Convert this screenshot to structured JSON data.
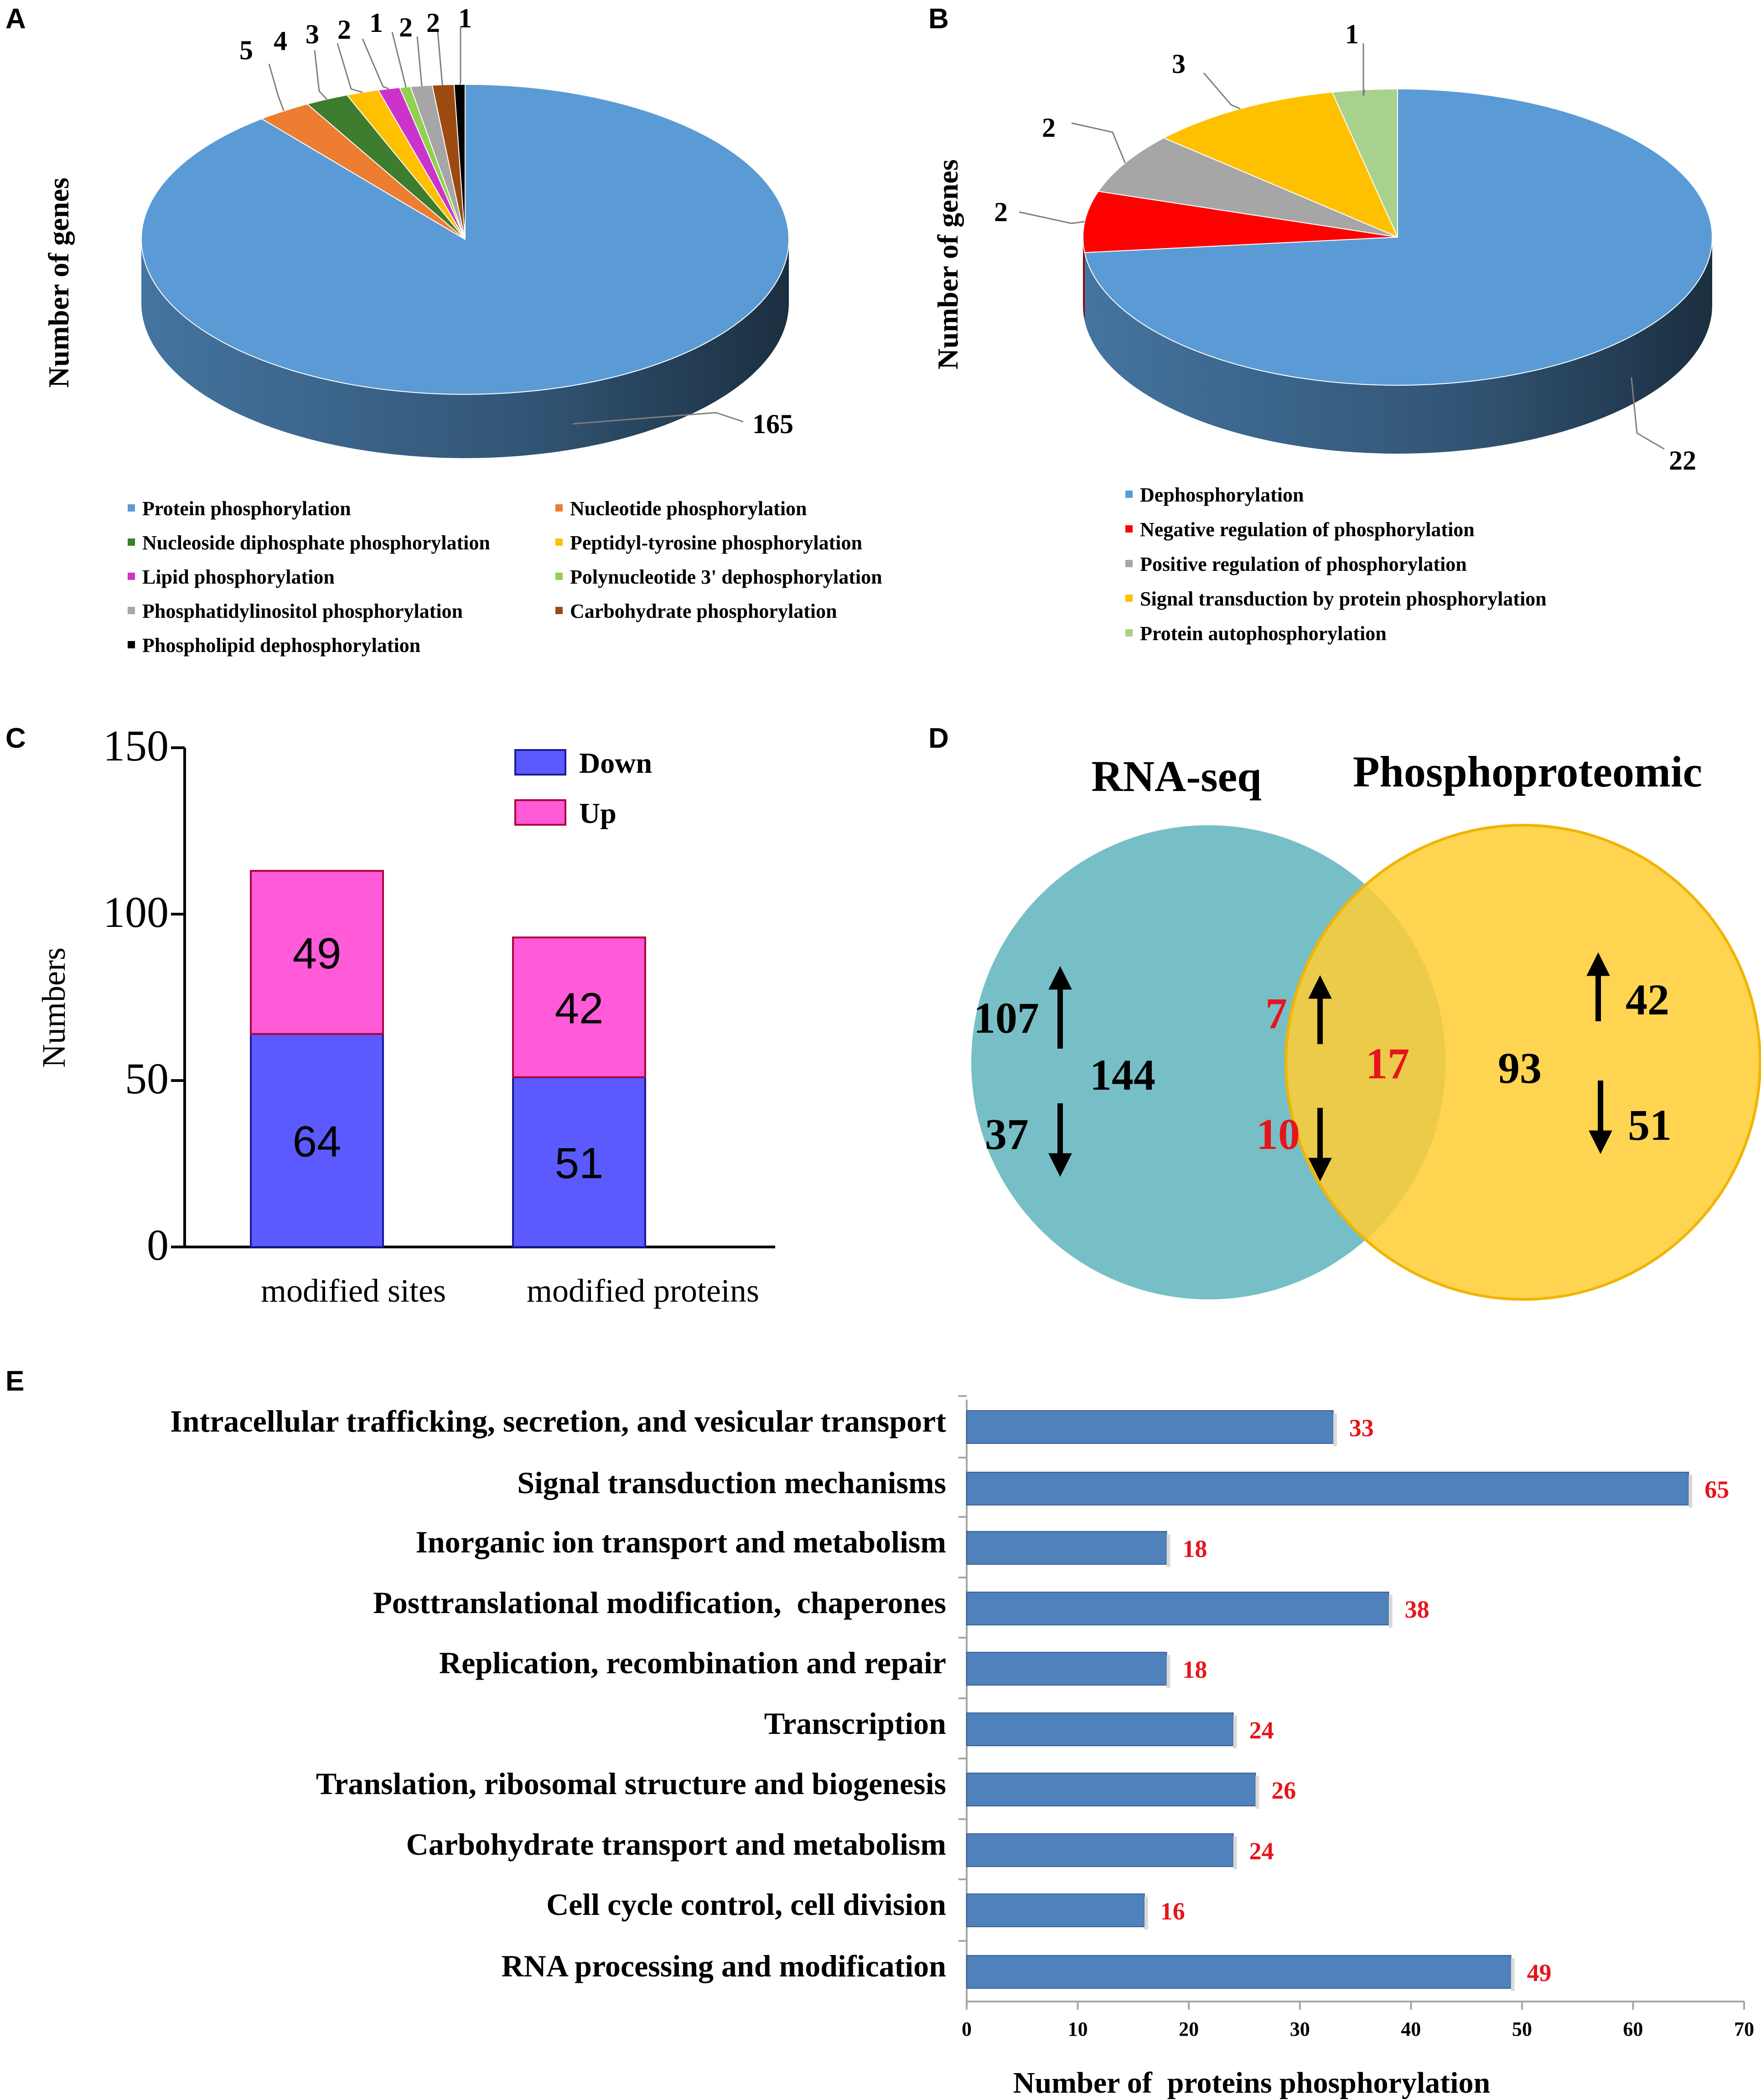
{
  "panels": {
    "a": "A",
    "b": "B",
    "c": "C",
    "d": "D",
    "e": "E"
  },
  "colors": {
    "blue_slice": "#5b9bd5",
    "blue_side": "#3a6d9b",
    "down": "#5a5aff",
    "up": "#ff5ad7",
    "rna": "#5fb4bc",
    "phospho": "#ffcc33",
    "bar_e": "#4f81bd",
    "red": "#e8141b"
  },
  "chart_data": [
    {
      "id": "A",
      "type": "pie",
      "ylabel": "Number of genes",
      "slices": [
        {
          "label": "Protein phosphorylation",
          "value": 165,
          "color": "#5b9bd5",
          "display": "165"
        },
        {
          "label": "Nucleotide phosphorylation",
          "value": 5,
          "color": "#ed7d31",
          "display": "5"
        },
        {
          "label": "Nucleoside diphosphate phosphorylation",
          "value": 4,
          "color": "#3e7c2e",
          "display": "4"
        },
        {
          "label": "Peptidyl-tyrosine phosphorylation",
          "value": 3,
          "color": "#ffc000",
          "display": "3"
        },
        {
          "label": "Lipid phosphorylation",
          "value": 2,
          "color": "#cc33cc",
          "display": "2"
        },
        {
          "label": "Polynucleotide 3' dephosphorylation",
          "value": 1,
          "color": "#92d050",
          "display": "1"
        },
        {
          "label": "Phosphatidylinositol phosphorylation",
          "value": 2,
          "color": "#a6a6a6",
          "display": "2"
        },
        {
          "label": "Carbohydrate phosphorylation",
          "value": 2,
          "color": "#9c4a10",
          "display": "2"
        },
        {
          "label": "Phospholipid dephosphorylation",
          "value": 1,
          "color": "#000000",
          "display": "1"
        }
      ]
    },
    {
      "id": "B",
      "type": "pie",
      "ylabel": "Number of genes",
      "slices": [
        {
          "label": "Dephosphorylation",
          "value": 22,
          "color": "#5b9bd5",
          "display": "22"
        },
        {
          "label": "Negative regulation of phosphorylation",
          "value": 2,
          "color": "#ff0000",
          "display": "2"
        },
        {
          "label": "Positive regulation of phosphorylation",
          "value": 2,
          "color": "#a6a6a6",
          "display": "2"
        },
        {
          "label": "Signal transduction by protein phosphorylation",
          "value": 3,
          "color": "#ffc000",
          "display": "3"
        },
        {
          "label": "Protein autophosphorylation",
          "value": 1,
          "color": "#a9d18e",
          "display": "1"
        }
      ]
    },
    {
      "id": "C",
      "type": "bar",
      "ylabel": "Numbers",
      "categories": [
        "modified sites",
        "modified proteins"
      ],
      "series": [
        {
          "name": "Down",
          "values": [
            64,
            51
          ]
        },
        {
          "name": "Up",
          "values": [
            49,
            42
          ]
        }
      ],
      "ylim": [
        0,
        150
      ],
      "yticks": [
        "0",
        "50",
        "100",
        "150"
      ],
      "value_labels": {
        "down": [
          "64",
          "51"
        ],
        "up": [
          "49",
          "42"
        ]
      }
    },
    {
      "id": "D",
      "type": "venn",
      "sets": [
        "RNA-seq",
        "Phosphoproteomic"
      ],
      "rna_total": "144",
      "rna_up": "107",
      "rna_down": "37",
      "overlap_total": "17",
      "overlap_up": "7",
      "overlap_down": "10",
      "phospho_total": "93",
      "phospho_up": "42",
      "phospho_down": "51"
    },
    {
      "id": "E",
      "type": "bar",
      "orientation": "horizontal",
      "xlabel": "Number of  proteins phosphorylation",
      "xlim": [
        0,
        70
      ],
      "xticks": [
        "0",
        "10",
        "20",
        "30",
        "40",
        "50",
        "60",
        "70"
      ],
      "categories": [
        "Intracellular trafficking, secretion, and vesicular transport",
        "Signal transduction mechanisms",
        "Inorganic ion transport and metabolism",
        "Posttranslational modification,  chaperones",
        "Replication, recombination and repair",
        "Transcription",
        "Translation, ribosomal structure and biogenesis",
        "Carbohydrate transport and metabolism",
        "Cell cycle control, cell division",
        "RNA processing and modification"
      ],
      "values": [
        33,
        65,
        18,
        38,
        18,
        24,
        26,
        24,
        16,
        49
      ],
      "labels": [
        "33",
        "65",
        "18",
        "38",
        "18",
        "24",
        "26",
        "24",
        "16",
        "49"
      ]
    }
  ]
}
